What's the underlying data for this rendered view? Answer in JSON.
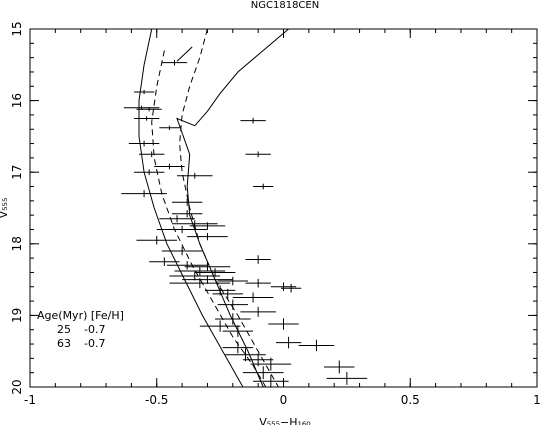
{
  "chart_data": {
    "type": "scatter",
    "title": "NGC1818CEN",
    "xlabel": "V₅₅₅−H₁₆₀",
    "ylabel": "V₅₅₅",
    "xlim": [
      -1,
      1
    ],
    "ylim": [
      20,
      15
    ],
    "x_ticks": [
      "-1",
      "-0.5",
      "0",
      "0.5",
      "1"
    ],
    "y_ticks": [
      "15",
      "16",
      "17",
      "18",
      "19",
      "20"
    ],
    "grid": false,
    "legend": {
      "position": "bottom-left",
      "header": "Age(Myr) [Fe/H]",
      "entries": [
        {
          "age": "25",
          "feh": "-0.7"
        },
        {
          "age": "63",
          "feh": "-0.7"
        }
      ]
    },
    "points": [
      {
        "x": -0.43,
        "y": 15.47,
        "xerr": 0.05,
        "yerr": 0.04
      },
      {
        "x": -0.55,
        "y": 15.88,
        "xerr": 0.04,
        "yerr": 0.03
      },
      {
        "x": -0.56,
        "y": 16.1,
        "xerr": 0.07,
        "yerr": 0.03
      },
      {
        "x": -0.53,
        "y": 16.12,
        "xerr": 0.05,
        "yerr": 0.03
      },
      {
        "x": -0.54,
        "y": 16.25,
        "xerr": 0.05,
        "yerr": 0.03
      },
      {
        "x": -0.12,
        "y": 16.28,
        "xerr": 0.05,
        "yerr": 0.04
      },
      {
        "x": -0.45,
        "y": 16.38,
        "xerr": 0.04,
        "yerr": 0.03
      },
      {
        "x": -0.55,
        "y": 16.6,
        "xerr": 0.06,
        "yerr": 0.04
      },
      {
        "x": -0.52,
        "y": 16.75,
        "xerr": 0.05,
        "yerr": 0.04
      },
      {
        "x": -0.1,
        "y": 16.75,
        "xerr": 0.05,
        "yerr": 0.04
      },
      {
        "x": -0.45,
        "y": 16.92,
        "xerr": 0.06,
        "yerr": 0.04
      },
      {
        "x": -0.53,
        "y": 17.0,
        "xerr": 0.06,
        "yerr": 0.04
      },
      {
        "x": -0.35,
        "y": 17.05,
        "xerr": 0.07,
        "yerr": 0.04
      },
      {
        "x": -0.08,
        "y": 17.2,
        "xerr": 0.04,
        "yerr": 0.04
      },
      {
        "x": -0.55,
        "y": 17.3,
        "xerr": 0.09,
        "yerr": 0.05
      },
      {
        "x": -0.38,
        "y": 17.42,
        "xerr": 0.06,
        "yerr": 0.05
      },
      {
        "x": -0.42,
        "y": 17.65,
        "xerr": 0.07,
        "yerr": 0.05
      },
      {
        "x": -0.38,
        "y": 17.58,
        "xerr": 0.06,
        "yerr": 0.05
      },
      {
        "x": -0.35,
        "y": 17.72,
        "xerr": 0.09,
        "yerr": 0.05
      },
      {
        "x": -0.3,
        "y": 17.75,
        "xerr": 0.07,
        "yerr": 0.05
      },
      {
        "x": -0.4,
        "y": 17.8,
        "xerr": 0.1,
        "yerr": 0.05
      },
      {
        "x": -0.5,
        "y": 17.95,
        "xerr": 0.08,
        "yerr": 0.06
      },
      {
        "x": -0.3,
        "y": 17.9,
        "xerr": 0.08,
        "yerr": 0.05
      },
      {
        "x": -0.4,
        "y": 18.1,
        "xerr": 0.08,
        "yerr": 0.06
      },
      {
        "x": -0.1,
        "y": 18.22,
        "xerr": 0.05,
        "yerr": 0.06
      },
      {
        "x": -0.47,
        "y": 18.25,
        "xerr": 0.06,
        "yerr": 0.06
      },
      {
        "x": -0.38,
        "y": 18.3,
        "xerr": 0.08,
        "yerr": 0.06
      },
      {
        "x": -0.3,
        "y": 18.32,
        "xerr": 0.09,
        "yerr": 0.06
      },
      {
        "x": -0.33,
        "y": 18.38,
        "xerr": 0.1,
        "yerr": 0.06
      },
      {
        "x": -0.27,
        "y": 18.4,
        "xerr": 0.08,
        "yerr": 0.06
      },
      {
        "x": -0.35,
        "y": 18.45,
        "xerr": 0.1,
        "yerr": 0.06
      },
      {
        "x": -0.3,
        "y": 18.5,
        "xerr": 0.1,
        "yerr": 0.06
      },
      {
        "x": -0.33,
        "y": 18.55,
        "xerr": 0.12,
        "yerr": 0.07
      },
      {
        "x": -0.2,
        "y": 18.52,
        "xerr": 0.06,
        "yerr": 0.06
      },
      {
        "x": -0.1,
        "y": 18.55,
        "xerr": 0.05,
        "yerr": 0.06
      },
      {
        "x": 0.0,
        "y": 18.6,
        "xerr": 0.05,
        "yerr": 0.06
      },
      {
        "x": -0.25,
        "y": 18.65,
        "xerr": 0.06,
        "yerr": 0.07
      },
      {
        "x": 0.03,
        "y": 18.62,
        "xerr": 0.04,
        "yerr": 0.06
      },
      {
        "x": -0.12,
        "y": 18.75,
        "xerr": 0.08,
        "yerr": 0.07
      },
      {
        "x": -0.22,
        "y": 18.7,
        "xerr": 0.06,
        "yerr": 0.07
      },
      {
        "x": -0.2,
        "y": 18.85,
        "xerr": 0.06,
        "yerr": 0.07
      },
      {
        "x": -0.1,
        "y": 18.95,
        "xerr": 0.07,
        "yerr": 0.07
      },
      {
        "x": -0.2,
        "y": 19.05,
        "xerr": 0.07,
        "yerr": 0.08
      },
      {
        "x": 0.0,
        "y": 19.12,
        "xerr": 0.06,
        "yerr": 0.08
      },
      {
        "x": -0.25,
        "y": 19.15,
        "xerr": 0.08,
        "yerr": 0.08
      },
      {
        "x": -0.18,
        "y": 19.22,
        "xerr": 0.06,
        "yerr": 0.08
      },
      {
        "x": 0.02,
        "y": 19.38,
        "xerr": 0.05,
        "yerr": 0.08
      },
      {
        "x": 0.13,
        "y": 19.42,
        "xerr": 0.07,
        "yerr": 0.08
      },
      {
        "x": -0.18,
        "y": 19.45,
        "xerr": 0.06,
        "yerr": 0.08
      },
      {
        "x": -0.15,
        "y": 19.55,
        "xerr": 0.08,
        "yerr": 0.09
      },
      {
        "x": -0.1,
        "y": 19.62,
        "xerr": 0.06,
        "yerr": 0.09
      },
      {
        "x": -0.05,
        "y": 19.68,
        "xerr": 0.08,
        "yerr": 0.09
      },
      {
        "x": 0.22,
        "y": 19.72,
        "xerr": 0.06,
        "yerr": 0.09
      },
      {
        "x": -0.08,
        "y": 19.8,
        "xerr": 0.08,
        "yerr": 0.09
      },
      {
        "x": 0.25,
        "y": 19.88,
        "xerr": 0.08,
        "yerr": 0.09
      },
      {
        "x": -0.05,
        "y": 19.92,
        "xerr": 0.07,
        "yerr": 0.09
      }
    ],
    "isochrones": [
      {
        "style": "solid",
        "points": [
          [
            -0.52,
            15.0
          ],
          [
            -0.55,
            15.5
          ],
          [
            -0.57,
            16.0
          ],
          [
            -0.57,
            16.5
          ],
          [
            -0.55,
            17.0
          ],
          [
            -0.51,
            17.5
          ],
          [
            -0.46,
            18.0
          ],
          [
            -0.39,
            18.5
          ],
          [
            -0.32,
            19.0
          ],
          [
            -0.24,
            19.5
          ],
          [
            -0.16,
            20.0
          ]
        ]
      },
      {
        "style": "dashed",
        "points": [
          [
            -0.47,
            15.3
          ],
          [
            -0.5,
            15.8
          ],
          [
            -0.52,
            16.3
          ],
          [
            -0.51,
            16.8
          ],
          [
            -0.48,
            17.3
          ],
          [
            -0.43,
            17.8
          ],
          [
            -0.36,
            18.3
          ],
          [
            -0.28,
            18.8
          ],
          [
            -0.2,
            19.3
          ],
          [
            -0.12,
            19.7
          ],
          [
            -0.07,
            20.0
          ]
        ]
      },
      {
        "style": "solid",
        "points": [
          [
            0.02,
            15.0
          ],
          [
            -0.08,
            15.3
          ],
          [
            -0.18,
            15.6
          ],
          [
            -0.25,
            15.9
          ],
          [
            -0.3,
            16.15
          ],
          [
            -0.35,
            16.35
          ],
          [
            -0.42,
            16.25
          ],
          [
            -0.37,
            16.75
          ],
          [
            -0.38,
            17.2
          ],
          [
            -0.37,
            17.6
          ],
          [
            -0.33,
            18.0
          ],
          [
            -0.27,
            18.5
          ],
          [
            -0.21,
            19.0
          ],
          [
            -0.14,
            19.5
          ],
          [
            -0.08,
            20.0
          ]
        ]
      },
      {
        "style": "dashed",
        "points": [
          [
            -0.3,
            15.0
          ],
          [
            -0.33,
            15.4
          ],
          [
            -0.37,
            15.8
          ],
          [
            -0.4,
            16.2
          ],
          [
            -0.41,
            16.6
          ],
          [
            -0.4,
            17.0
          ],
          [
            -0.37,
            17.5
          ],
          [
            -0.33,
            18.0
          ],
          [
            -0.27,
            18.5
          ],
          [
            -0.18,
            19.0
          ],
          [
            -0.1,
            19.5
          ],
          [
            -0.02,
            20.0
          ]
        ]
      },
      {
        "style": "solid",
        "points": [
          [
            -0.42,
            15.45
          ],
          [
            -0.39,
            15.35
          ],
          [
            -0.36,
            15.25
          ]
        ]
      }
    ]
  }
}
